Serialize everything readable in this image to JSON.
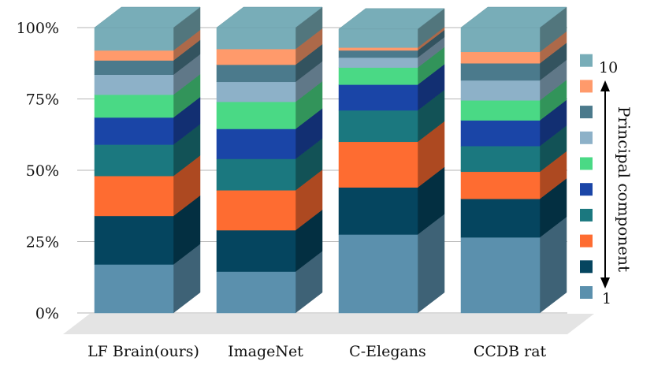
{
  "chart_data": {
    "type": "bar",
    "stacked": true,
    "percent_stacked": true,
    "title": "",
    "xlabel": "",
    "ylabel": "",
    "ylim": [
      0,
      100
    ],
    "y_ticks": [
      "0%",
      "25%",
      "50%",
      "75%",
      "100%"
    ],
    "categories": [
      "LF Brain(ours)",
      "ImageNet",
      "C-Elegans",
      "CCDB rat"
    ],
    "series": [
      {
        "name": "1",
        "color": "#5b90ad",
        "values": [
          17,
          14.5,
          27.5,
          26.5
        ]
      },
      {
        "name": "2",
        "color": "#05455f",
        "values": [
          17,
          14.5,
          16.5,
          13.5
        ]
      },
      {
        "name": "3",
        "color": "#fe6c31",
        "values": [
          14,
          14,
          16,
          9.5
        ]
      },
      {
        "name": "4",
        "color": "#1b787f",
        "values": [
          11,
          11,
          11,
          9
        ]
      },
      {
        "name": "5",
        "color": "#1a45a7",
        "values": [
          9.5,
          10.5,
          9,
          9
        ]
      },
      {
        "name": "6",
        "color": "#4ad985",
        "values": [
          8,
          9.5,
          6,
          7
        ]
      },
      {
        "name": "7",
        "color": "#8db1c8",
        "values": [
          7,
          7,
          3.5,
          7
        ]
      },
      {
        "name": "8",
        "color": "#4b7a8c",
        "values": [
          5,
          6,
          2.5,
          6
        ]
      },
      {
        "name": "9",
        "color": "#ff9a6b",
        "values": [
          3.5,
          5.5,
          1,
          4
        ]
      },
      {
        "name": "10",
        "color": "#78adb8",
        "values": [
          8,
          7.5,
          6.5,
          8.5
        ]
      }
    ],
    "legend": {
      "placement": "right",
      "title": "Principal component",
      "top_label": "10",
      "bottom_label": "1"
    }
  }
}
